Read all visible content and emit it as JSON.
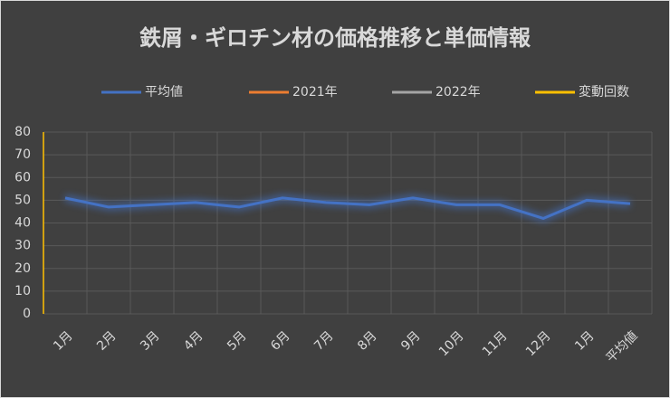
{
  "chart_data": {
    "type": "line",
    "title": "鉄屑・ギロチン材の価格推移と単価情報",
    "categories": [
      "1月",
      "2月",
      "3月",
      "4月",
      "5月",
      "6月",
      "7月",
      "8月",
      "9月",
      "10月",
      "11月",
      "12月",
      "1月",
      "平均値"
    ],
    "series": [
      {
        "name": "平均値",
        "color": "#4472c4",
        "values": [
          51,
          47,
          48,
          49,
          47,
          51,
          49,
          48,
          51,
          48,
          48,
          42,
          50,
          48.5
        ]
      },
      {
        "name": "2021年",
        "color": "#ed7d31",
        "values": [
          null,
          null,
          null,
          null,
          null,
          null,
          null,
          null,
          null,
          null,
          null,
          null,
          null,
          null
        ]
      },
      {
        "name": "2022年",
        "color": "#a5a5a5",
        "values": [
          null,
          null,
          null,
          null,
          null,
          null,
          null,
          null,
          null,
          null,
          null,
          null,
          null,
          null
        ]
      },
      {
        "name": "変動回数",
        "color": "#ffc000",
        "values": [
          null,
          null,
          null,
          null,
          null,
          null,
          null,
          null,
          null,
          null,
          null,
          null,
          null,
          null
        ]
      }
    ],
    "ylim": [
      0,
      80
    ],
    "yticks": [
      0,
      10,
      20,
      30,
      40,
      50,
      60,
      70,
      80
    ],
    "grid": true,
    "legend": "top"
  }
}
